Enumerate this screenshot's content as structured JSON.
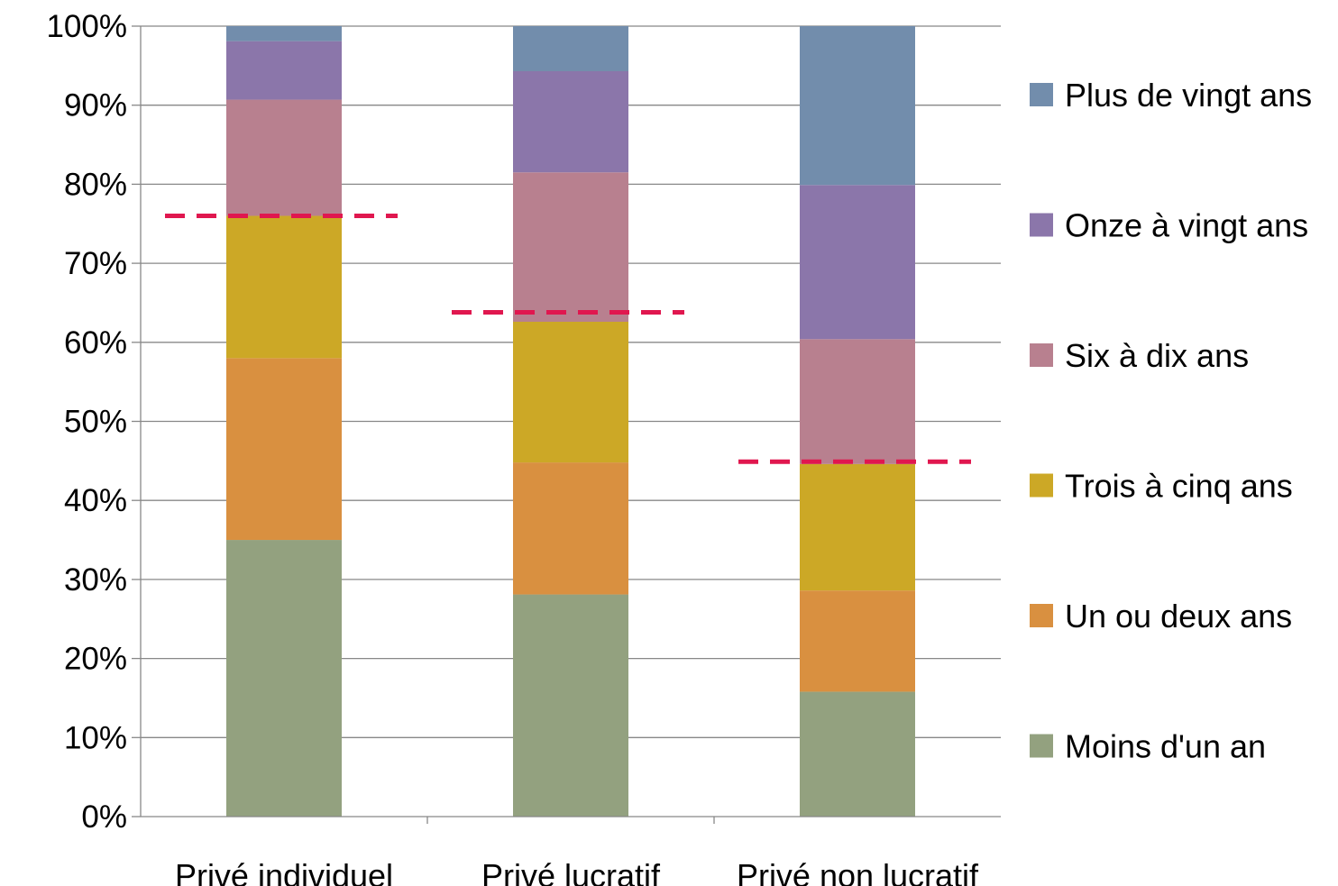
{
  "chart_data": {
    "type": "bar",
    "stacked": true,
    "normalized": true,
    "categories": [
      "Privé individuel",
      "Privé lucratif",
      "Privé non lucratif"
    ],
    "ylim": [
      0,
      100
    ],
    "ytick_step": 10,
    "ytick_labels": [
      "0%",
      "10%",
      "20%",
      "30%",
      "40%",
      "50%",
      "60%",
      "70%",
      "80%",
      "90%",
      "100%"
    ],
    "grid": true,
    "legend_position": "right",
    "series": [
      {
        "name": "Moins d'un an",
        "color": "#93a17f",
        "values": [
          35.0,
          28.1,
          15.8
        ]
      },
      {
        "name": "Un ou deux ans",
        "color": "#d99040",
        "values": [
          23.0,
          16.7,
          12.8
        ]
      },
      {
        "name": "Trois à cinq ans",
        "color": "#cca826",
        "values": [
          18.0,
          17.8,
          16.0
        ]
      },
      {
        "name": "Six à dix ans",
        "color": "#b8808f",
        "values": [
          14.7,
          18.9,
          15.8
        ]
      },
      {
        "name": "Onze à vingt ans",
        "color": "#8b76aa",
        "values": [
          7.4,
          12.8,
          19.5
        ]
      },
      {
        "name": "Plus de vingt ans",
        "color": "#728dac",
        "values": [
          1.9,
          5.7,
          20.1
        ]
      }
    ],
    "reference_lines": {
      "color": "#e0174f",
      "style": "dashed",
      "values": [
        76.0,
        63.8,
        44.9
      ]
    }
  }
}
